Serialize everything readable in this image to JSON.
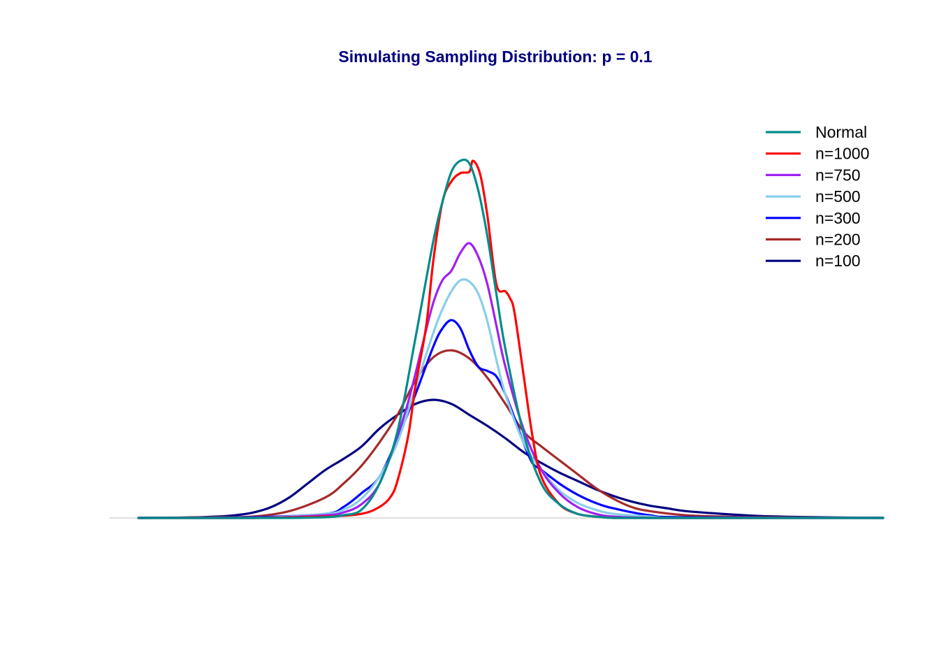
{
  "chart_data": {
    "type": "line",
    "title": "Simulating Sampling Distribution: p = 0.1",
    "title_color": "#000080",
    "xlabel": "",
    "ylabel": "",
    "axes_visible": false,
    "grid": false,
    "baseline_color": "#bebebe",
    "legend_position": "top-right",
    "xlim": [
      -0.1,
      0.115
    ],
    "ylim": [
      0,
      26
    ],
    "series": [
      {
        "name": "Normal",
        "color": "#008b8b",
        "x": [
          -0.092,
          -0.08,
          -0.06,
          -0.05,
          -0.04,
          -0.035,
          -0.03,
          -0.025,
          -0.02,
          -0.015,
          -0.01,
          -0.0075,
          -0.005,
          -0.0025,
          0,
          0.0025,
          0.005,
          0.0075,
          0.01,
          0.015,
          0.02,
          0.025,
          0.03,
          0.035,
          0.04,
          0.05,
          0.06,
          0.08,
          0.115
        ],
        "y": [
          0,
          0,
          0,
          0,
          0.05,
          0.2,
          0.6,
          2.5,
          6.3,
          13.1,
          20.2,
          23.0,
          25.2,
          26.0,
          25.8,
          23.8,
          20.5,
          16.3,
          12.3,
          6.2,
          2.5,
          1.0,
          0.3,
          0.1,
          0,
          0,
          0,
          0,
          0
        ]
      },
      {
        "name": "n=1000",
        "color": "#ff0000",
        "x": [
          -0.092,
          -0.06,
          -0.04,
          -0.03,
          -0.025,
          -0.022,
          -0.02,
          -0.017,
          -0.015,
          -0.012,
          -0.01,
          -0.0075,
          -0.005,
          -0.0025,
          0,
          0.001,
          0.003,
          0.005,
          0.0075,
          0.01,
          0.01125,
          0.0125,
          0.015,
          0.0175,
          0.02,
          0.025,
          0.03,
          0.035,
          0.04,
          0.05,
          0.115
        ],
        "y": [
          0,
          0,
          0.1,
          0.3,
          0.8,
          1.5,
          2.7,
          6.0,
          9.6,
          14.0,
          18.8,
          23.0,
          24.5,
          25.1,
          25.2,
          26.0,
          25.0,
          22.0,
          17.0,
          16.5,
          16.0,
          15.0,
          10.5,
          6.0,
          3.0,
          1.0,
          0.3,
          0.1,
          0,
          0,
          0
        ]
      },
      {
        "name": "n=750",
        "color": "#a020f0",
        "x": [
          -0.092,
          -0.06,
          -0.04,
          -0.035,
          -0.03,
          -0.025,
          -0.02,
          -0.0175,
          -0.015,
          -0.0125,
          -0.01,
          -0.0075,
          -0.005,
          -0.0025,
          0,
          0.0025,
          0.005,
          0.0075,
          0.01,
          0.015,
          0.02,
          0.025,
          0.03,
          0.035,
          0.04,
          0.05,
          0.06,
          0.115
        ],
        "y": [
          0,
          0,
          0.2,
          0.4,
          1.0,
          2.5,
          6.0,
          8.0,
          10.5,
          13.2,
          15.7,
          17.3,
          18.0,
          19.3,
          20.0,
          19.0,
          17.0,
          14.0,
          11.0,
          6.5,
          3.5,
          1.8,
          0.8,
          0.3,
          0.1,
          0,
          0,
          0
        ]
      },
      {
        "name": "n=500",
        "color": "#87ceeb",
        "x": [
          -0.092,
          -0.06,
          -0.04,
          -0.035,
          -0.03,
          -0.025,
          -0.02,
          -0.015,
          -0.01,
          -0.0075,
          -0.005,
          -0.0025,
          0,
          0.0025,
          0.005,
          0.0075,
          0.01,
          0.015,
          0.02,
          0.025,
          0.03,
          0.035,
          0.04,
          0.05,
          0.06,
          0.115
        ],
        "y": [
          0,
          0,
          0.3,
          0.6,
          1.4,
          3.0,
          5.5,
          9.5,
          13.5,
          15.2,
          16.5,
          17.3,
          17.2,
          16.3,
          14.3,
          11.5,
          9.0,
          5.5,
          3.5,
          2.0,
          1.1,
          0.6,
          0.3,
          0.1,
          0,
          0
        ]
      },
      {
        "name": "n=300",
        "color": "#0000ff",
        "x": [
          -0.092,
          -0.06,
          -0.04,
          -0.035,
          -0.03,
          -0.025,
          -0.02,
          -0.015,
          -0.01,
          -0.0075,
          -0.005,
          -0.0025,
          0,
          0.0025,
          0.005,
          0.0075,
          0.01,
          0.0125,
          0.015,
          0.0175,
          0.02,
          0.025,
          0.03,
          0.035,
          0.04,
          0.05,
          0.06,
          0.115
        ],
        "y": [
          0,
          0.05,
          0.3,
          0.8,
          1.8,
          3.0,
          5.8,
          9.0,
          12.5,
          13.8,
          14.4,
          13.8,
          12.2,
          11.0,
          10.7,
          10.3,
          9.0,
          7.3,
          5.5,
          4.0,
          3.5,
          2.5,
          1.7,
          1.1,
          0.7,
          0.2,
          0.05,
          0
        ]
      },
      {
        "name": "n=200",
        "color": "#a52a2a",
        "x": [
          -0.092,
          -0.07,
          -0.06,
          -0.05,
          -0.04,
          -0.035,
          -0.03,
          -0.025,
          -0.02,
          -0.015,
          -0.01,
          -0.005,
          0,
          0.005,
          0.01,
          0.015,
          0.02,
          0.025,
          0.03,
          0.035,
          0.04,
          0.045,
          0.05,
          0.06,
          0.07,
          0.08,
          0.115
        ],
        "y": [
          0,
          0.05,
          0.1,
          0.5,
          1.5,
          2.5,
          3.8,
          5.5,
          7.5,
          10.0,
          11.7,
          12.2,
          11.6,
          10.2,
          8.3,
          6.3,
          5.2,
          4.2,
          3.2,
          2.2,
          1.4,
          0.8,
          0.5,
          0.2,
          0.1,
          0.05,
          0
        ]
      },
      {
        "name": "n=100",
        "color": "#000080",
        "x": [
          -0.092,
          -0.08,
          -0.07,
          -0.065,
          -0.06,
          -0.055,
          -0.05,
          -0.045,
          -0.04,
          -0.035,
          -0.03,
          -0.025,
          -0.02,
          -0.015,
          -0.01,
          -0.005,
          0,
          0.005,
          0.01,
          0.015,
          0.02,
          0.025,
          0.03,
          0.035,
          0.04,
          0.045,
          0.05,
          0.055,
          0.06,
          0.07,
          0.08,
          0.09,
          0.1,
          0.115
        ],
        "y": [
          0,
          0.02,
          0.1,
          0.2,
          0.4,
          0.8,
          1.5,
          2.5,
          3.5,
          4.3,
          5.2,
          6.5,
          7.5,
          8.3,
          8.6,
          8.3,
          7.5,
          6.7,
          5.8,
          4.8,
          4.0,
          3.3,
          2.7,
          2.1,
          1.6,
          1.2,
          0.9,
          0.7,
          0.5,
          0.3,
          0.15,
          0.08,
          0.04,
          0
        ]
      }
    ]
  }
}
